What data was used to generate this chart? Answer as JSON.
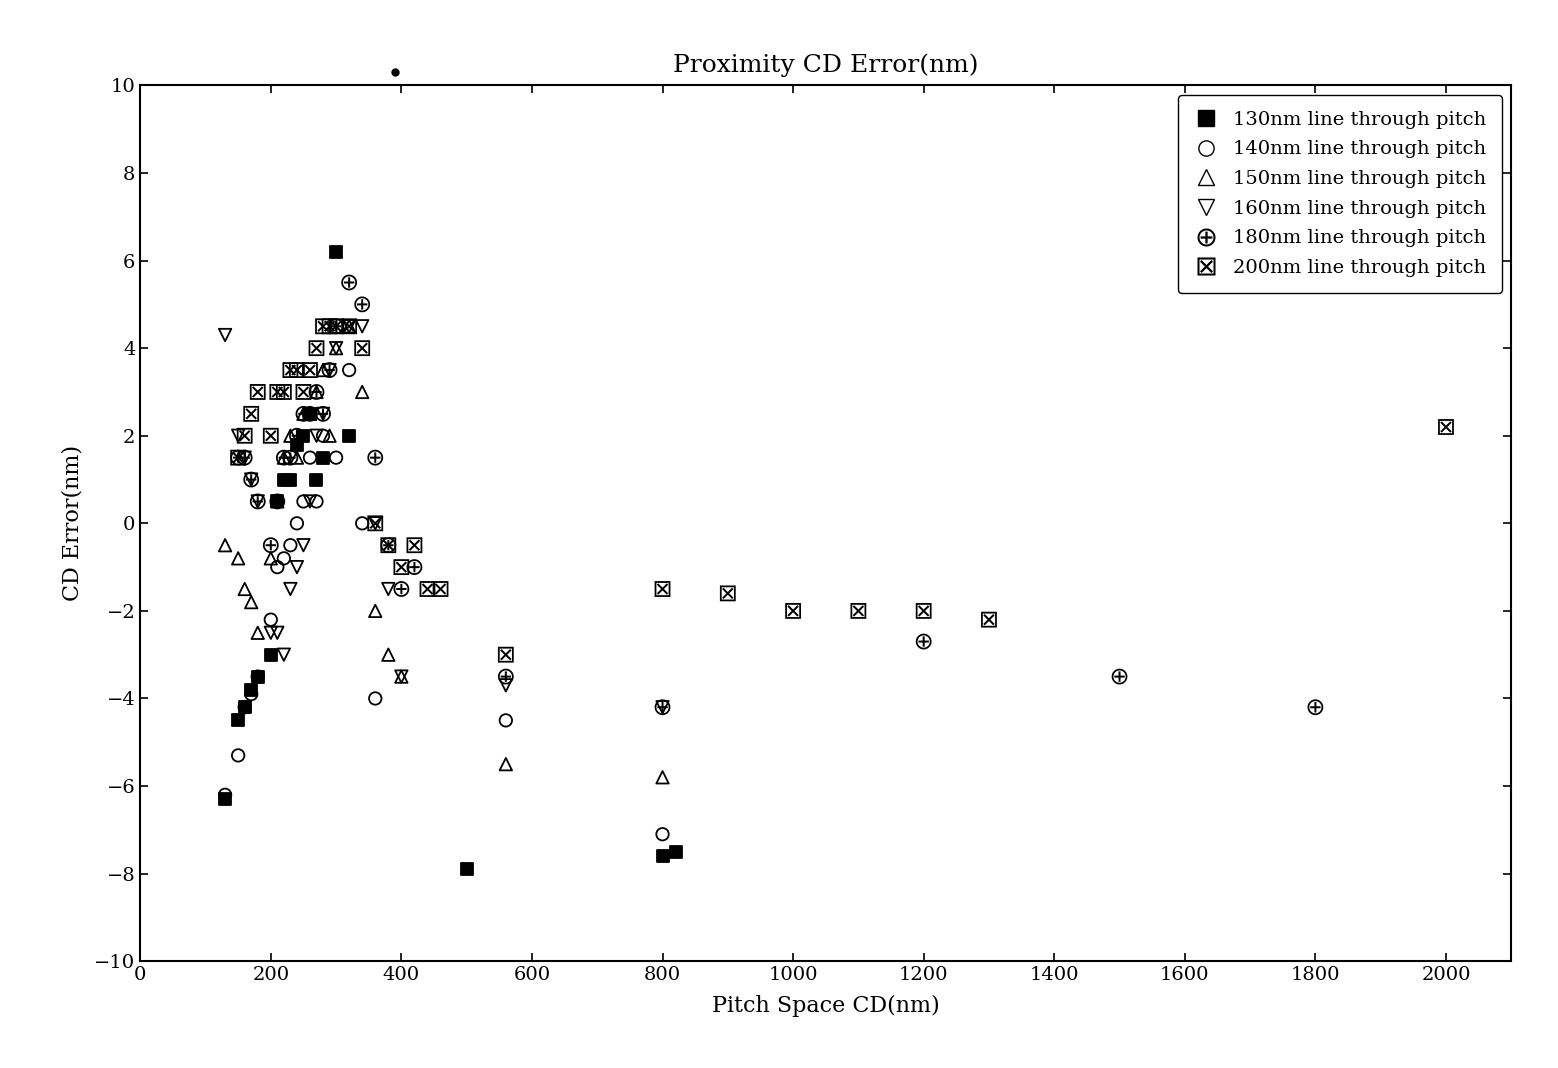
{
  "title": "Proximity CD Error(nm)",
  "xlabel": "Pitch Space CD(nm)",
  "ylabel": "CD Error(nm)",
  "xlim": [
    0,
    2100
  ],
  "ylim": [
    -10,
    10
  ],
  "xticks": [
    0,
    200,
    400,
    600,
    800,
    1000,
    1200,
    1400,
    1600,
    1800,
    2000
  ],
  "yticks": [
    -10,
    -8,
    -6,
    -4,
    -2,
    0,
    2,
    4,
    6,
    8,
    10
  ],
  "series": {
    "130nm": {
      "label": "130nm line through pitch",
      "x": [
        130,
        150,
        160,
        170,
        180,
        200,
        210,
        220,
        230,
        240,
        250,
        260,
        270,
        280,
        300,
        320,
        500,
        800,
        820
      ],
      "y": [
        -6.3,
        -4.5,
        -4.2,
        -3.8,
        -3.5,
        -3.0,
        0.5,
        1.0,
        1.0,
        1.8,
        2.0,
        2.5,
        1.0,
        1.5,
        6.2,
        2.0,
        -7.9,
        -7.6,
        -7.5
      ]
    },
    "140nm": {
      "label": "140nm line through pitch",
      "x": [
        130,
        150,
        160,
        170,
        180,
        200,
        210,
        220,
        230,
        240,
        250,
        260,
        270,
        280,
        300,
        320,
        340,
        360,
        560,
        800
      ],
      "y": [
        -6.2,
        -5.3,
        -4.2,
        -3.9,
        -3.5,
        -2.2,
        -1.0,
        -0.8,
        -0.5,
        0.0,
        0.5,
        1.5,
        0.5,
        2.0,
        1.5,
        3.5,
        0.0,
        -4.0,
        -4.5,
        -7.1
      ]
    },
    "150nm": {
      "label": "150nm line through pitch",
      "x": [
        130,
        150,
        160,
        170,
        180,
        200,
        210,
        220,
        230,
        240,
        250,
        260,
        270,
        280,
        290,
        300,
        320,
        340,
        360,
        380,
        400,
        560,
        800
      ],
      "y": [
        -0.5,
        -0.8,
        -1.5,
        -1.8,
        -2.5,
        -0.8,
        0.5,
        1.5,
        2.0,
        1.5,
        2.5,
        2.5,
        3.0,
        3.5,
        2.0,
        4.0,
        4.5,
        3.0,
        -2.0,
        -3.0,
        -3.5,
        -5.5,
        -5.8
      ]
    },
    "160nm": {
      "label": "160nm line through pitch",
      "x": [
        130,
        150,
        160,
        170,
        180,
        200,
        210,
        220,
        230,
        240,
        250,
        260,
        270,
        280,
        290,
        300,
        320,
        340,
        360,
        380,
        400,
        560,
        800
      ],
      "y": [
        4.3,
        2.0,
        1.5,
        1.0,
        0.5,
        -2.5,
        -2.5,
        -3.0,
        -1.5,
        -1.0,
        -0.5,
        0.5,
        2.0,
        2.5,
        3.5,
        4.0,
        4.5,
        4.5,
        0.0,
        -1.5,
        -3.5,
        -3.7,
        -4.2
      ]
    },
    "180nm": {
      "label": "180nm line through pitch",
      "x": [
        150,
        160,
        170,
        180,
        200,
        210,
        220,
        230,
        240,
        250,
        260,
        270,
        280,
        290,
        300,
        320,
        340,
        360,
        380,
        400,
        420,
        560,
        800,
        1200,
        1500,
        1800
      ],
      "y": [
        1.5,
        1.5,
        1.0,
        0.5,
        -0.5,
        0.5,
        1.5,
        1.5,
        2.0,
        2.5,
        2.5,
        3.0,
        2.5,
        3.5,
        4.5,
        5.5,
        5.0,
        1.5,
        -0.5,
        -1.5,
        -1.0,
        -3.5,
        -4.2,
        -2.7,
        -3.5,
        -4.2
      ]
    },
    "200nm": {
      "label": "200nm line through pitch",
      "x": [
        150,
        160,
        170,
        180,
        200,
        210,
        220,
        230,
        240,
        250,
        260,
        270,
        280,
        290,
        300,
        320,
        340,
        360,
        380,
        400,
        420,
        440,
        460,
        560,
        800,
        900,
        1000,
        1100,
        1200,
        1300,
        2000
      ],
      "y": [
        1.5,
        2.0,
        2.5,
        3.0,
        2.0,
        3.0,
        3.0,
        3.5,
        3.5,
        3.0,
        3.5,
        4.0,
        4.5,
        4.5,
        4.5,
        4.5,
        4.0,
        0.0,
        -0.5,
        -1.0,
        -0.5,
        -1.5,
        -1.5,
        -3.0,
        -1.5,
        -1.6,
        -2.0,
        -2.0,
        -2.0,
        -2.2,
        2.2
      ]
    }
  },
  "outlier_x": 390,
  "outlier_y": 10.3,
  "background_color": "#ffffff",
  "title_fontsize": 18,
  "axis_label_fontsize": 16,
  "tick_fontsize": 14,
  "legend_fontsize": 14,
  "marker_size": 80,
  "marker_size_special": 100
}
